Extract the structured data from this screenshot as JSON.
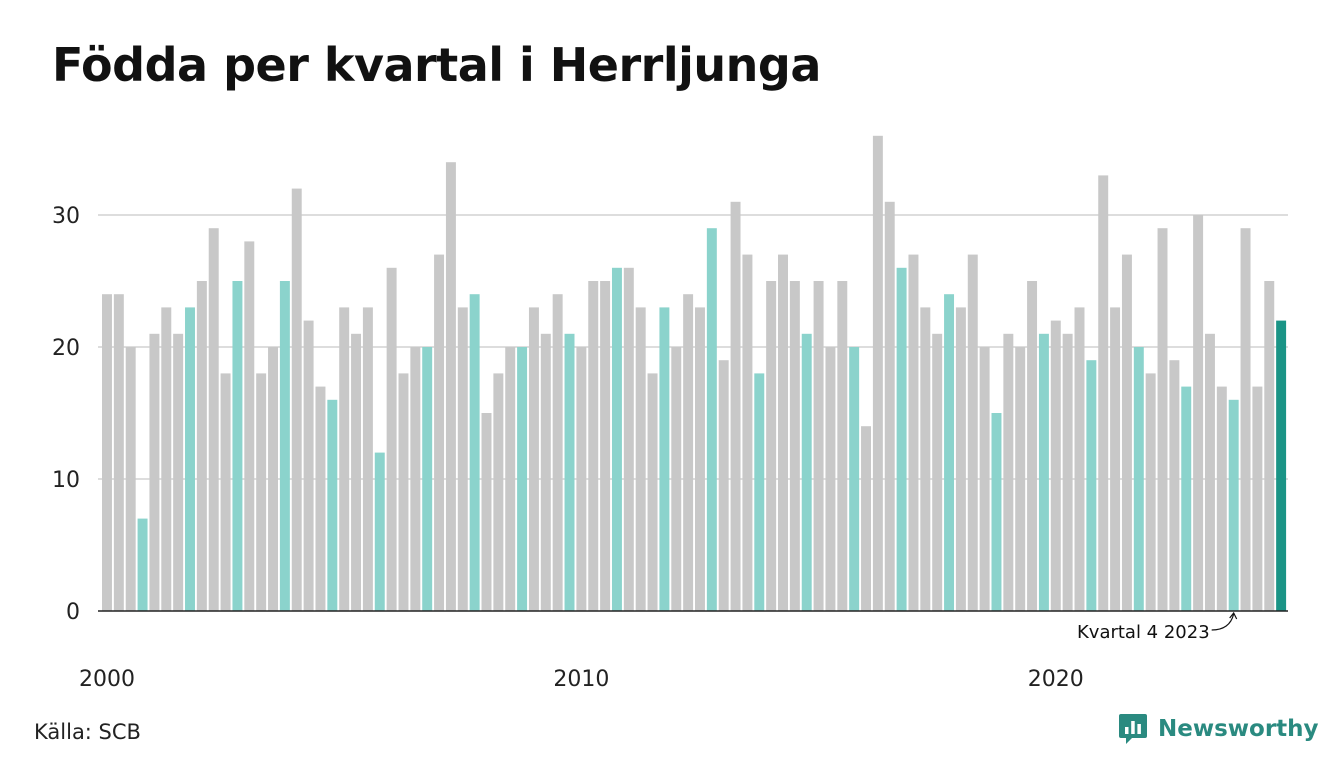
{
  "title": "Födda per kvartal i Herrljunga",
  "source": "Källa: SCB",
  "brand": {
    "name": "Newsworthy",
    "icon": "bar-chart-logo-icon"
  },
  "colors": {
    "bar_default": "#c8c8c8",
    "bar_q4": "#8bd3cc",
    "bar_latest": "#1a9486",
    "grid": "#dddddd",
    "axis": "#222222",
    "brand": "#2a8a80"
  },
  "chart_data": {
    "type": "bar",
    "title": "Födda per kvartal i Herrljunga",
    "xlabel": "",
    "ylabel": "",
    "ylim": [
      0,
      36
    ],
    "yticks": [
      0,
      10,
      20,
      30
    ],
    "xticks": [
      "2000",
      "2010",
      "2020"
    ],
    "grid": true,
    "highlight": "Q4 bars in light teal; latest quarter in dark teal",
    "annotation": "Kvartal 4 2023",
    "categories": [
      "2000 Q1",
      "2000 Q2",
      "2000 Q3",
      "2000 Q4",
      "2001 Q1",
      "2001 Q2",
      "2001 Q3",
      "2001 Q4",
      "2002 Q1",
      "2002 Q2",
      "2002 Q3",
      "2002 Q4",
      "2003 Q1",
      "2003 Q2",
      "2003 Q3",
      "2003 Q4",
      "2004 Q1",
      "2004 Q2",
      "2004 Q3",
      "2004 Q4",
      "2005 Q1",
      "2005 Q2",
      "2005 Q3",
      "2005 Q4",
      "2006 Q1",
      "2006 Q2",
      "2006 Q3",
      "2006 Q4",
      "2007 Q1",
      "2007 Q2",
      "2007 Q3",
      "2007 Q4",
      "2008 Q1",
      "2008 Q2",
      "2008 Q3",
      "2008 Q4",
      "2009 Q1",
      "2009 Q2",
      "2009 Q3",
      "2009 Q4",
      "2010 Q1",
      "2010 Q2",
      "2010 Q3",
      "2010 Q4",
      "2011 Q1",
      "2011 Q2",
      "2011 Q3",
      "2011 Q4",
      "2012 Q1",
      "2012 Q2",
      "2012 Q3",
      "2012 Q4",
      "2013 Q1",
      "2013 Q2",
      "2013 Q3",
      "2013 Q4",
      "2014 Q1",
      "2014 Q2",
      "2014 Q3",
      "2014 Q4",
      "2015 Q1",
      "2015 Q2",
      "2015 Q3",
      "2015 Q4",
      "2016 Q1",
      "2016 Q2",
      "2016 Q3",
      "2016 Q4",
      "2017 Q1",
      "2017 Q2",
      "2017 Q3",
      "2017 Q4",
      "2018 Q1",
      "2018 Q2",
      "2018 Q3",
      "2018 Q4",
      "2019 Q1",
      "2019 Q2",
      "2019 Q3",
      "2019 Q4",
      "2020 Q1",
      "2020 Q2",
      "2020 Q3",
      "2020 Q4",
      "2021 Q1",
      "2021 Q2",
      "2021 Q3",
      "2021 Q4",
      "2022 Q1",
      "2022 Q2",
      "2022 Q3",
      "2022 Q4",
      "2023 Q1",
      "2023 Q2",
      "2023 Q3",
      "2023 Q4",
      "2024 Q1",
      "2024 Q2",
      "2024 Q3",
      "2024 Q4"
    ],
    "values": [
      24,
      24,
      20,
      7,
      21,
      23,
      21,
      23,
      25,
      29,
      18,
      25,
      28,
      18,
      20,
      25,
      32,
      22,
      17,
      16,
      23,
      21,
      23,
      12,
      26,
      18,
      20,
      20,
      27,
      34,
      23,
      24,
      15,
      18,
      20,
      20,
      23,
      21,
      24,
      21,
      20,
      25,
      25,
      26,
      26,
      23,
      18,
      23,
      20,
      24,
      23,
      29,
      19,
      31,
      27,
      18,
      25,
      27,
      25,
      21,
      25,
      20,
      25,
      20,
      14,
      36,
      31,
      26,
      27,
      23,
      21,
      24,
      23,
      27,
      20,
      15,
      21,
      20,
      25,
      21,
      22,
      21,
      23,
      19,
      33,
      23,
      27,
      20,
      18,
      29,
      19,
      17,
      30,
      21,
      17,
      16,
      29,
      17,
      25,
      22
    ]
  }
}
